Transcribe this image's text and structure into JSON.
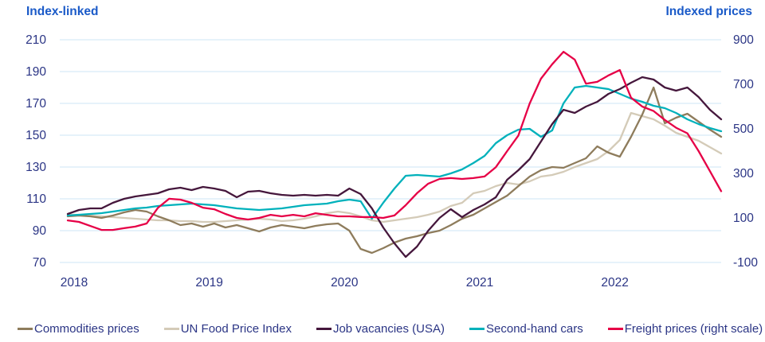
{
  "chart_data": {
    "type": "line",
    "title": "",
    "x_start": "2018-01",
    "x_end": "2022-11",
    "x_points": 59,
    "x_tick_labels": [
      "2018",
      "2019",
      "2020",
      "2021",
      "2022"
    ],
    "grid": true,
    "grid_color": "#d7e9f8",
    "text_color": "#2b3585",
    "header_color": "#1a5ac8",
    "legend_position": "bottom",
    "left_axis": {
      "title": "Index-linked",
      "range": [
        70,
        210
      ],
      "ticks": [
        210,
        190,
        170,
        150,
        130,
        110,
        90,
        70
      ]
    },
    "right_axis": {
      "title": "Indexed prices",
      "range": [
        -100,
        900
      ],
      "ticks": [
        900,
        700,
        500,
        300,
        100,
        -100
      ]
    },
    "series": [
      {
        "name": "Commodities prices",
        "axis": "left",
        "color": "#8e7c5c",
        "values": [
          99,
          99.5,
          99,
          98,
          99.5,
          101.5,
          103,
          102,
          99,
          96.5,
          93.5,
          94.5,
          92.5,
          94.5,
          92,
          93.5,
          91.5,
          89.5,
          92,
          93.5,
          92.5,
          91.5,
          93,
          94,
          94.5,
          90,
          78.5,
          76,
          79,
          82.5,
          85,
          86.5,
          88.5,
          90,
          93.5,
          97.5,
          100,
          104,
          108,
          112,
          118,
          124,
          128,
          130,
          129.5,
          132.5,
          135.5,
          143,
          139,
          136.5,
          149,
          163,
          180,
          157.5,
          161,
          163.5,
          158.5,
          153.5,
          149
        ]
      },
      {
        "name": "UN Food Price Index",
        "axis": "left",
        "color": "#d4cbb8",
        "values": [
          100,
          100,
          99.5,
          99,
          98.5,
          98,
          97.5,
          97,
          96.5,
          96.5,
          96,
          96,
          95.5,
          95.5,
          96,
          96.5,
          97,
          97.5,
          97,
          96,
          96.5,
          97.5,
          99,
          101,
          102,
          101,
          99,
          96.5,
          95.5,
          96.5,
          97.5,
          98.5,
          100,
          102,
          105.5,
          107.5,
          113.5,
          115,
          118,
          120,
          119,
          121,
          124,
          125,
          127,
          130,
          132.5,
          135,
          140,
          147,
          164,
          162,
          160,
          156,
          151.5,
          149,
          146.5,
          142.5,
          138.5
        ]
      },
      {
        "name": "Job vacancies (USA)",
        "axis": "left",
        "color": "#45173c",
        "values": [
          100.5,
          103,
          104,
          104,
          107.5,
          110,
          111.5,
          112.5,
          113.5,
          116,
          117,
          115.5,
          117.5,
          116.5,
          115,
          111,
          114.5,
          115,
          113.5,
          112.5,
          112,
          112.5,
          112,
          112.5,
          112,
          116.5,
          113,
          104,
          92,
          82,
          73.5,
          80,
          90,
          98,
          103.5,
          98.5,
          103,
          106.5,
          111,
          122,
          128,
          135,
          146,
          157,
          166,
          164,
          168,
          171,
          176,
          179,
          183,
          186.5,
          185,
          180,
          178,
          180,
          174,
          166,
          160
        ]
      },
      {
        "name": "Second-hand cars",
        "axis": "left",
        "color": "#00b1bb",
        "values": [
          99.5,
          100,
          100.5,
          101,
          102,
          103,
          104,
          104.5,
          105.5,
          106,
          106.5,
          107,
          106.5,
          106,
          105,
          104,
          103.5,
          103,
          103.5,
          104,
          105,
          106,
          106.5,
          107,
          108.5,
          109.5,
          108.5,
          97.5,
          107.5,
          116.5,
          124.5,
          125,
          124.5,
          124,
          126,
          128.5,
          132.5,
          137,
          145,
          150,
          153.5,
          154,
          149,
          153,
          170,
          180,
          181,
          180,
          179,
          176,
          173,
          171,
          168.5,
          167,
          164,
          160,
          157,
          154.5,
          152.5
        ]
      },
      {
        "name": "Freight prices (right scale)",
        "axis": "right",
        "color": "#e60046",
        "values": [
          89,
          82,
          64,
          46,
          46,
          54,
          61,
          75,
          145,
          186,
          182,
          168,
          146,
          139,
          118,
          100,
          93,
          100,
          114,
          107,
          114,
          107,
          121,
          114,
          107,
          107,
          104,
          104,
          100,
          111,
          157,
          211,
          254,
          275,
          279,
          275,
          279,
          286,
          328,
          400,
          470,
          614,
          725,
          790,
          846,
          811,
          703,
          711,
          740,
          764,
          640,
          600,
          580,
          540,
          505,
          480,
          400,
          310,
          220
        ]
      }
    ]
  }
}
